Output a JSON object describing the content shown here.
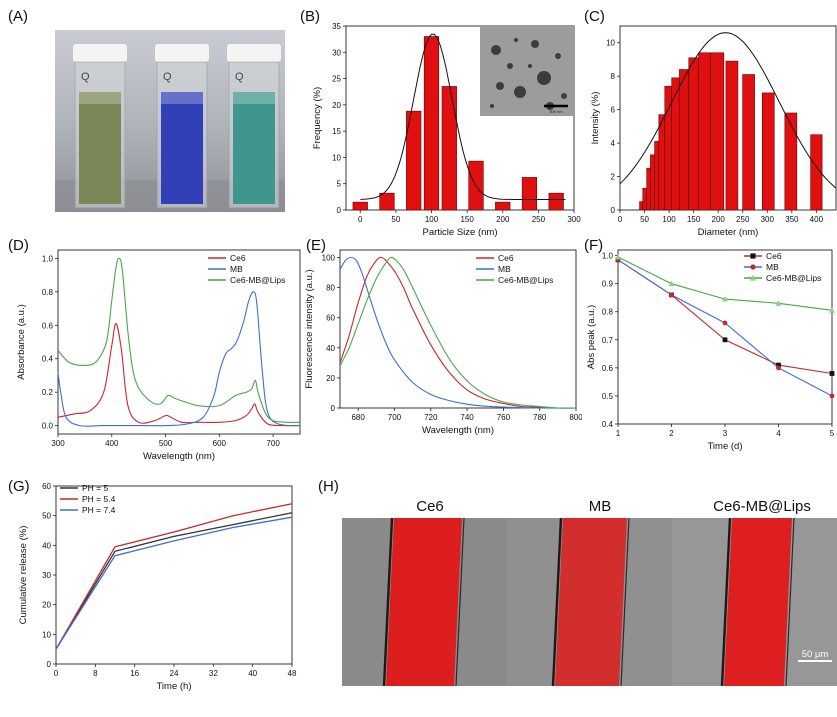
{
  "panels": {
    "A": "(A)",
    "B": "(B)",
    "C": "(C)",
    "D": "(D)",
    "E": "(E)",
    "F": "(F)",
    "G": "(G)",
    "H": "(H)"
  },
  "photo_a": {
    "cuvette_mark": "Q",
    "colors": [
      "#7b8757",
      "#3240b8",
      "#3f968d"
    ]
  },
  "micro_h": {
    "titles": [
      "Ce6",
      "MB",
      "Ce6-MB@Lips"
    ],
    "scale": "50 μm",
    "colors": {
      "red": "#e01818",
      "gray": "#7a7a7a"
    }
  },
  "chart_data": [
    {
      "id": "B",
      "type": "bar",
      "xlabel": "Particle Size (nm)",
      "ylabel": "Frequency (%)",
      "xlim": [
        -20,
        300
      ],
      "ylim": [
        0,
        35
      ],
      "xticks": [
        0,
        50,
        100,
        150,
        200,
        250,
        300
      ],
      "yticks": [
        0,
        5,
        10,
        15,
        20,
        25,
        30,
        35
      ],
      "bar_width": 25,
      "x": [
        0,
        37.5,
        75,
        100,
        125,
        162.5,
        200,
        237.5,
        275
      ],
      "values": [
        1.5,
        3.2,
        18.8,
        33,
        23.5,
        9.3,
        1.5,
        6.2,
        3.2
      ],
      "fit_peak": 102,
      "fit_height": 33.5,
      "fit_sigma": 27,
      "fit_base": 2,
      "inset_scale": "500 nm",
      "colors": {
        "bar": "#e01010",
        "edge": "#6b0000",
        "fit": "#111111"
      }
    },
    {
      "id": "C",
      "type": "bar",
      "xlabel": "Diameter (nm)",
      "ylabel": "Intensity (%)",
      "xlim": [
        0,
        440
      ],
      "ylim": [
        0,
        11
      ],
      "xticks": [
        0,
        50,
        100,
        150,
        200,
        250,
        300,
        350,
        400
      ],
      "yticks": [
        0,
        2,
        4,
        6,
        8,
        10
      ],
      "x": [
        43,
        50,
        58,
        66,
        75,
        85,
        98,
        113,
        130,
        150,
        172,
        198,
        228,
        262,
        302,
        348,
        400
      ],
      "values": [
        0.5,
        1.3,
        2.5,
        3.3,
        4.1,
        5.7,
        7.4,
        7.9,
        8.4,
        9.1,
        9.4,
        9.4,
        8.9,
        8.1,
        7.0,
        5.8,
        4.5
      ],
      "fit_peak": 215,
      "fit_height": 10.6,
      "fit_sigma": 110,
      "colors": {
        "bar": "#e01010",
        "edge": "#6b0000",
        "fit": "#111111"
      }
    },
    {
      "id": "D",
      "type": "line",
      "xlabel": "Wavelength (nm)",
      "ylabel": "Absorbance (a.u.)",
      "xlim": [
        300,
        750
      ],
      "ylim": [
        -0.05,
        1.05
      ],
      "xticks": [
        300,
        400,
        500,
        600,
        700
      ],
      "yticks": [
        0.0,
        0.2,
        0.4,
        0.6,
        0.8,
        1.0
      ],
      "legend_position": "top-right",
      "series": [
        {
          "name": "Ce6",
          "color": "#c8282b",
          "x": [
            300,
            330,
            360,
            385,
            400,
            408,
            418,
            430,
            450,
            480,
            500,
            510,
            530,
            560,
            600,
            630,
            650,
            660,
            666,
            672,
            690,
            720,
            750
          ],
          "y": [
            0.05,
            0.07,
            0.09,
            0.2,
            0.48,
            0.61,
            0.45,
            0.12,
            0.02,
            0.03,
            0.06,
            0.05,
            0.02,
            0.02,
            0.02,
            0.03,
            0.06,
            0.1,
            0.13,
            0.08,
            0.01,
            0.0,
            0.0
          ]
        },
        {
          "name": "MB",
          "color": "#3d6fd2",
          "x": [
            300,
            305,
            315,
            340,
            380,
            420,
            460,
            500,
            540,
            570,
            590,
            600,
            612,
            622,
            632,
            645,
            655,
            664,
            670,
            680,
            690,
            710,
            750
          ],
          "y": [
            0.32,
            0.2,
            0.05,
            0.0,
            0.0,
            0.0,
            0.0,
            0.0,
            0.01,
            0.05,
            0.18,
            0.32,
            0.43,
            0.46,
            0.5,
            0.62,
            0.75,
            0.8,
            0.72,
            0.32,
            0.08,
            0.01,
            0.0
          ]
        },
        {
          "name": "Ce6-MB@Lips",
          "color": "#4aa64a",
          "x": [
            300,
            320,
            345,
            370,
            390,
            400,
            408,
            414,
            420,
            432,
            445,
            470,
            490,
            505,
            520,
            560,
            600,
            630,
            650,
            660,
            667,
            672,
            685,
            700,
            730,
            750
          ],
          "y": [
            0.45,
            0.38,
            0.36,
            0.38,
            0.5,
            0.75,
            0.95,
            1.0,
            0.92,
            0.5,
            0.26,
            0.15,
            0.13,
            0.18,
            0.16,
            0.12,
            0.12,
            0.18,
            0.2,
            0.22,
            0.27,
            0.2,
            0.08,
            0.03,
            0.02,
            0.02
          ]
        }
      ]
    },
    {
      "id": "E",
      "type": "line",
      "xlabel": "Wavelength (nm)",
      "ylabel": "Fluorescence intensity (a.u.)",
      "xlim": [
        670,
        800
      ],
      "ylim": [
        0,
        105
      ],
      "xticks": [
        680,
        700,
        720,
        740,
        760,
        780,
        800
      ],
      "yticks": [
        0,
        20,
        40,
        60,
        80,
        100
      ],
      "legend_position": "top-right",
      "series": [
        {
          "name": "Ce6",
          "color": "#c8282b",
          "x": [
            670,
            675,
            680,
            685,
            690,
            693,
            696,
            700,
            705,
            710,
            720,
            730,
            740,
            750,
            760,
            770,
            780,
            790,
            800
          ],
          "y": [
            30,
            48,
            70,
            88,
            98,
            100,
            97,
            91,
            80,
            66,
            42,
            24,
            12,
            6,
            3,
            1,
            0.5,
            0,
            0
          ]
        },
        {
          "name": "MB",
          "color": "#3d6fd2",
          "x": [
            670,
            673,
            676,
            679,
            682,
            686,
            690,
            695,
            700,
            710,
            720,
            730,
            740,
            750,
            760,
            770,
            780,
            800
          ],
          "y": [
            92,
            98,
            100,
            98,
            90,
            75,
            60,
            44,
            32,
            17,
            9,
            5,
            2.5,
            1.2,
            0.6,
            0.2,
            0,
            0
          ]
        },
        {
          "name": "Ce6-MB@Lips",
          "color": "#4aa64a",
          "x": [
            670,
            675,
            680,
            685,
            690,
            695,
            698,
            701,
            705,
            710,
            720,
            730,
            740,
            750,
            760,
            770,
            780,
            790,
            800
          ],
          "y": [
            28,
            40,
            56,
            72,
            86,
            96,
            100,
            98,
            92,
            80,
            55,
            33,
            18,
            9,
            4,
            2,
            1,
            0,
            0
          ]
        }
      ]
    },
    {
      "id": "F",
      "type": "line",
      "xlabel": "Time (d)",
      "ylabel": "Abs peak (a.u.)",
      "xlim": [
        1,
        5
      ],
      "ylim": [
        0.4,
        1.02
      ],
      "xticks": [
        1,
        2,
        3,
        4,
        5
      ],
      "yticks": [
        0.4,
        0.5,
        0.6,
        0.7,
        0.8,
        0.9,
        1.0
      ],
      "legend_position": "top-right",
      "series": [
        {
          "name": "Ce6",
          "color": "#c8282b",
          "marker": "square",
          "marker_color": "#111111",
          "x": [
            1,
            2,
            3,
            4,
            5
          ],
          "y": [
            0.985,
            0.86,
            0.7,
            0.61,
            0.58
          ]
        },
        {
          "name": "MB",
          "color": "#3d6fd2",
          "marker": "circle",
          "marker_color": "#c8282b",
          "x": [
            1,
            2,
            3,
            4,
            5
          ],
          "y": [
            0.985,
            0.86,
            0.76,
            0.6,
            0.5
          ]
        },
        {
          "name": "Ce6-MB@Lips",
          "color": "#4aa64a",
          "marker": "triangle",
          "marker_color": "#7ed67e",
          "x": [
            1,
            2,
            3,
            4,
            5
          ],
          "y": [
            0.995,
            0.9,
            0.845,
            0.83,
            0.805
          ]
        }
      ]
    },
    {
      "id": "G",
      "type": "line",
      "xlabel": "Time (h)",
      "ylabel": "Cumulative release (%)",
      "xlim": [
        0,
        48
      ],
      "ylim": [
        0,
        60
      ],
      "xticks": [
        0,
        8,
        16,
        24,
        32,
        40,
        48
      ],
      "yticks": [
        0,
        10,
        20,
        30,
        40,
        50,
        60
      ],
      "legend_position": "top-left",
      "series": [
        {
          "name": "PH = 5",
          "color": "#333333",
          "x": [
            0,
            12,
            24,
            36,
            48
          ],
          "y": [
            5,
            38,
            43,
            47,
            51
          ]
        },
        {
          "name": "PH = 5.4",
          "color": "#c8282b",
          "x": [
            0,
            12,
            24,
            36,
            48
          ],
          "y": [
            5,
            39.5,
            44.5,
            50,
            54
          ]
        },
        {
          "name": "PH = 7.4",
          "color": "#3d6fd2",
          "x": [
            0,
            12,
            24,
            36,
            48
          ],
          "y": [
            5,
            36.5,
            41.5,
            46,
            49.5
          ]
        }
      ]
    }
  ]
}
